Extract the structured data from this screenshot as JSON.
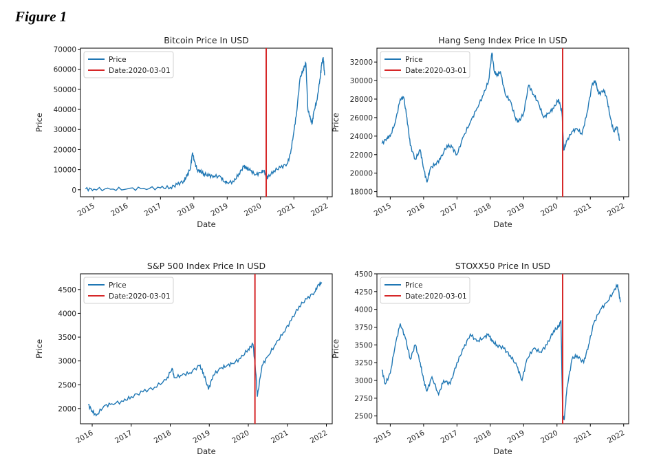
{
  "figure": {
    "label": "Figure 1"
  },
  "colors": {
    "series": "#1f77b4",
    "event_line": "#d62728"
  },
  "legend": {
    "price_label": "Price",
    "event_label": "Date:2020-03-01"
  },
  "chart_data": [
    {
      "type": "line",
      "title": "Bitcoin Price In USD",
      "xlabel": "Date",
      "ylabel": "Price",
      "xlim": [
        2014.6,
        2022.15
      ],
      "ylim": [
        -3500,
        70500
      ],
      "yticks": [
        0,
        10000,
        20000,
        30000,
        40000,
        50000,
        60000,
        70000
      ],
      "xticks": [
        2015,
        2016,
        2017,
        2018,
        2019,
        2020,
        2021,
        2022
      ],
      "event_x": 2020.17,
      "legend_position": "top-left",
      "grid": false,
      "series": [
        {
          "name": "Price",
          "x": [
            2014.75,
            2015.0,
            2015.5,
            2016.0,
            2016.5,
            2017.0,
            2017.3,
            2017.5,
            2017.7,
            2017.8,
            2017.9,
            2017.96,
            2018.02,
            2018.1,
            2018.2,
            2018.3,
            2018.45,
            2018.6,
            2018.8,
            2018.92,
            2019.0,
            2019.2,
            2019.35,
            2019.5,
            2019.58,
            2019.7,
            2019.85,
            2020.0,
            2020.1,
            2020.17,
            2020.22,
            2020.4,
            2020.6,
            2020.8,
            2020.9,
            2021.0,
            2021.08,
            2021.18,
            2021.28,
            2021.36,
            2021.42,
            2021.5,
            2021.55,
            2021.6,
            2021.7,
            2021.78,
            2021.83,
            2021.88,
            2021.92
          ],
          "values": [
            400,
            300,
            250,
            400,
            650,
            900,
            1200,
            2500,
            4500,
            7000,
            11000,
            18500,
            14000,
            10000,
            9000,
            8000,
            7000,
            6800,
            6500,
            3800,
            3600,
            4000,
            8000,
            11500,
            11000,
            9500,
            7500,
            8500,
            9500,
            6500,
            6000,
            9500,
            11000,
            13000,
            18000,
            29000,
            38000,
            55000,
            60000,
            63000,
            40000,
            35000,
            33000,
            39000,
            45000,
            55000,
            62000,
            66000,
            57000
          ]
        }
      ]
    },
    {
      "type": "line",
      "title": "Hang Seng Index Price In USD",
      "xlabel": "Date",
      "ylabel": "Price",
      "xlim": [
        2014.6,
        2022.15
      ],
      "ylim": [
        17450,
        33500
      ],
      "yticks": [
        18000,
        20000,
        22000,
        24000,
        26000,
        28000,
        30000,
        32000
      ],
      "xticks": [
        2015,
        2016,
        2017,
        2018,
        2019,
        2020,
        2021,
        2022
      ],
      "event_x": 2020.17,
      "legend_position": "top-left",
      "grid": false,
      "series": [
        {
          "name": "Price",
          "x": [
            2014.75,
            2014.9,
            2015.0,
            2015.15,
            2015.3,
            2015.4,
            2015.5,
            2015.6,
            2015.75,
            2015.9,
            2016.0,
            2016.1,
            2016.2,
            2016.35,
            2016.5,
            2016.7,
            2016.85,
            2017.0,
            2017.2,
            2017.4,
            2017.6,
            2017.8,
            2017.95,
            2018.05,
            2018.12,
            2018.2,
            2018.3,
            2018.45,
            2018.6,
            2018.75,
            2018.85,
            2019.0,
            2019.15,
            2019.3,
            2019.45,
            2019.6,
            2019.75,
            2019.9,
            2020.05,
            2020.15,
            2020.2,
            2020.3,
            2020.45,
            2020.6,
            2020.75,
            2020.9,
            2021.05,
            2021.15,
            2021.25,
            2021.4,
            2021.5,
            2021.6,
            2021.7,
            2021.8,
            2021.88
          ],
          "values": [
            23200,
            23800,
            24000,
            25500,
            28000,
            28200,
            26000,
            23000,
            21500,
            22500,
            20500,
            19000,
            20500,
            21000,
            21500,
            23000,
            22800,
            22000,
            24000,
            25500,
            27000,
            28500,
            30000,
            33000,
            31000,
            30500,
            31000,
            28500,
            27800,
            26000,
            25500,
            26500,
            29500,
            28500,
            27500,
            26000,
            26500,
            27000,
            28000,
            26500,
            22500,
            23500,
            24500,
            24800,
            24200,
            26500,
            29500,
            30000,
            28500,
            29000,
            28000,
            26000,
            24500,
            25000,
            23500
          ]
        }
      ]
    },
    {
      "type": "line",
      "title": "S&P 500 Index Price In USD",
      "xlabel": "Date",
      "ylabel": "Price",
      "xlim": [
        2015.7,
        2022.15
      ],
      "ylim": [
        1680,
        4830
      ],
      "yticks": [
        2000,
        2500,
        3000,
        3500,
        4000,
        4500
      ],
      "xticks": [
        2016,
        2017,
        2018,
        2019,
        2020,
        2021,
        2022
      ],
      "event_x": 2020.17,
      "legend_position": "top-left",
      "grid": false,
      "series": [
        {
          "name": "Price",
          "x": [
            2015.9,
            2016.0,
            2016.1,
            2016.3,
            2016.5,
            2016.8,
            2017.0,
            2017.3,
            2017.6,
            2017.9,
            2018.05,
            2018.1,
            2018.3,
            2018.5,
            2018.75,
            2018.85,
            2018.98,
            2019.1,
            2019.3,
            2019.45,
            2019.6,
            2019.8,
            2020.0,
            2020.12,
            2020.2,
            2020.23,
            2020.35,
            2020.5,
            2020.7,
            2020.9,
            2021.1,
            2021.3,
            2021.5,
            2021.7,
            2021.8,
            2021.88
          ],
          "values": [
            2080,
            1950,
            1850,
            2050,
            2100,
            2150,
            2250,
            2350,
            2450,
            2600,
            2850,
            2650,
            2700,
            2750,
            2900,
            2750,
            2400,
            2700,
            2850,
            2900,
            2950,
            3050,
            3250,
            3350,
            2700,
            2250,
            2900,
            3100,
            3350,
            3600,
            3850,
            4150,
            4300,
            4450,
            4600,
            4650
          ]
        }
      ]
    },
    {
      "type": "line",
      "title": "STOXX50 Price In USD",
      "xlabel": "Date",
      "ylabel": "Price",
      "xlim": [
        2014.6,
        2022.15
      ],
      "ylim": [
        2390,
        4500
      ],
      "yticks": [
        2500,
        2750,
        3000,
        3250,
        3500,
        3750,
        4000,
        4250,
        4500
      ],
      "xticks": [
        2015,
        2016,
        2017,
        2018,
        2019,
        2020,
        2021,
        2022
      ],
      "event_x": 2020.17,
      "legend_position": "top-left",
      "grid": false,
      "series": [
        {
          "name": "Price",
          "x": [
            2014.75,
            2014.85,
            2015.0,
            2015.15,
            2015.3,
            2015.45,
            2015.6,
            2015.75,
            2015.9,
            2016.0,
            2016.1,
            2016.25,
            2016.45,
            2016.6,
            2016.8,
            2017.0,
            2017.2,
            2017.4,
            2017.6,
            2017.8,
            2017.95,
            2018.05,
            2018.2,
            2018.4,
            2018.6,
            2018.8,
            2018.95,
            2019.1,
            2019.3,
            2019.5,
            2019.7,
            2019.9,
            2020.05,
            2020.12,
            2020.17,
            2020.22,
            2020.3,
            2020.45,
            2020.6,
            2020.8,
            2020.95,
            2021.1,
            2021.3,
            2021.5,
            2021.7,
            2021.82,
            2021.9
          ],
          "values": [
            3150,
            2950,
            3100,
            3500,
            3800,
            3600,
            3300,
            3500,
            3250,
            3000,
            2850,
            3050,
            2800,
            3000,
            2950,
            3250,
            3450,
            3650,
            3550,
            3600,
            3650,
            3550,
            3500,
            3450,
            3350,
            3200,
            3000,
            3300,
            3450,
            3400,
            3500,
            3700,
            3750,
            3850,
            2500,
            2450,
            2900,
            3300,
            3350,
            3250,
            3500,
            3800,
            4000,
            4100,
            4250,
            4350,
            4100
          ]
        }
      ]
    }
  ]
}
